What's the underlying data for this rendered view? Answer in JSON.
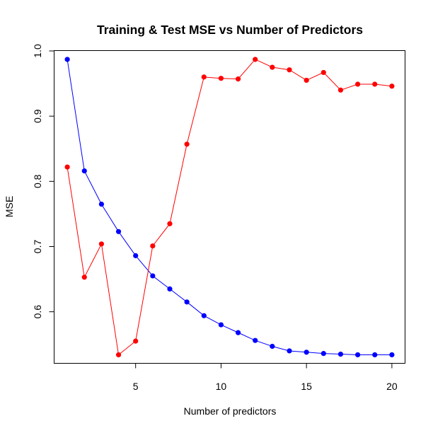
{
  "chart_data": {
    "type": "line",
    "title": "Training & Test MSE vs Number of Predictors",
    "xlabel": "Number of predictors",
    "ylabel": "MSE",
    "xlim": [
      0.25,
      20.75
    ],
    "ylim": [
      0.5215,
      1.0
    ],
    "x_ticks": [
      5,
      10,
      15,
      20
    ],
    "y_ticks": [
      0.6,
      0.7,
      0.8,
      0.9,
      1.0
    ],
    "x_tick_labels": [
      "5",
      "10",
      "15",
      "20"
    ],
    "y_tick_labels": [
      "0.6",
      "0.7",
      "0.8",
      "0.9",
      "1.0"
    ],
    "grid": false,
    "legend": "none",
    "x": [
      1,
      2,
      3,
      4,
      5,
      6,
      7,
      8,
      9,
      10,
      11,
      12,
      13,
      14,
      15,
      16,
      17,
      18,
      19,
      20
    ],
    "series": [
      {
        "color": "#0000ff",
        "values": [
          0.987,
          0.816,
          0.765,
          0.723,
          0.686,
          0.655,
          0.635,
          0.615,
          0.594,
          0.58,
          0.568,
          0.556,
          0.547,
          0.54,
          0.538,
          0.536,
          0.535,
          0.534,
          0.534,
          0.534
        ]
      },
      {
        "color": "#ff0000",
        "values": [
          0.822,
          0.653,
          0.704,
          0.534,
          0.555,
          0.701,
          0.735,
          0.857,
          0.96,
          0.958,
          0.957,
          0.987,
          0.975,
          0.971,
          0.955,
          0.967,
          0.94,
          0.949,
          0.949,
          0.946
        ]
      }
    ]
  }
}
